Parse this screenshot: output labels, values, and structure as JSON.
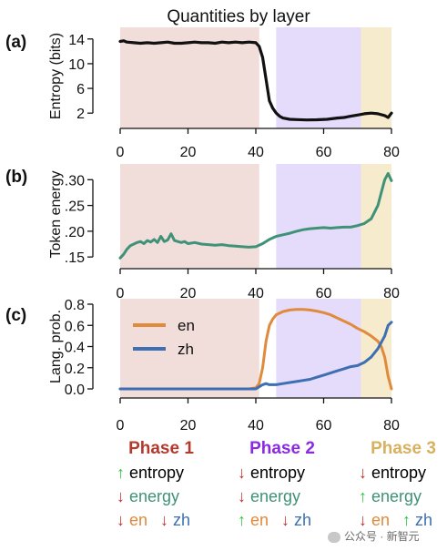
{
  "figure": {
    "title": "Quantities by layer",
    "colors": {
      "phase1": "#f1dedb",
      "phase2": "#e4dcfa",
      "phase3": "#f6ebcd",
      "line_black": "#111111",
      "energy_green": "#3f9278",
      "en_orange": "#e08a3c",
      "zh_blue": "#3d6fb2",
      "phase1_title": "#b53a2e",
      "phase2_title": "#8a2be2",
      "phase3_title": "#d9b05f"
    }
  },
  "chart_data": [
    {
      "type": "line",
      "panel_label": "(a)",
      "title": "Quantities by layer",
      "ylabel": "Entropy (bits)",
      "xlabel": "",
      "xlim": [
        0,
        80
      ],
      "ylim": [
        1,
        15
      ],
      "xticks": [
        "0",
        "20",
        "40",
        "60",
        "80"
      ],
      "yticks": [
        "14",
        "10",
        "6",
        "2"
      ],
      "ytick_values": [
        14,
        10,
        6,
        2
      ],
      "phase_shading": [
        {
          "from": 0,
          "to": 41
        },
        {
          "from": 46,
          "to": 71
        },
        {
          "from": 71,
          "to": 80
        }
      ],
      "series": [
        {
          "color": "#111111",
          "x": [
            0,
            1,
            2,
            4,
            6,
            8,
            10,
            12,
            14,
            16,
            18,
            20,
            22,
            24,
            26,
            28,
            30,
            32,
            34,
            36,
            38,
            40,
            41,
            42,
            43,
            44,
            45,
            46,
            47,
            48,
            50,
            52,
            55,
            58,
            61,
            64,
            66,
            68,
            70,
            72,
            74,
            76,
            78,
            79,
            80
          ],
          "y": [
            13.6,
            13.7,
            13.5,
            13.4,
            13.3,
            13.4,
            13.3,
            13.4,
            13.5,
            13.3,
            13.3,
            13.4,
            13.5,
            13.4,
            13.4,
            13.3,
            13.5,
            13.4,
            13.5,
            13.4,
            13.5,
            13.4,
            12.8,
            11.0,
            7.5,
            4.0,
            2.8,
            2.0,
            1.5,
            1.2,
            1.0,
            0.95,
            0.9,
            0.92,
            1.0,
            1.2,
            1.3,
            1.5,
            1.7,
            1.9,
            2.0,
            1.9,
            1.6,
            1.3,
            2.0
          ]
        }
      ]
    },
    {
      "type": "line",
      "panel_label": "(b)",
      "ylabel": "Token energy",
      "xlabel": "",
      "xlim": [
        0,
        80
      ],
      "ylim": [
        0.145,
        0.32
      ],
      "xticks": [
        "0",
        "20",
        "40",
        "60",
        "80"
      ],
      "yticks": [
        ".30",
        ".25",
        ".20",
        ".15"
      ],
      "ytick_values": [
        0.3,
        0.25,
        0.2,
        0.15
      ],
      "phase_shading": [
        {
          "from": 0,
          "to": 41
        },
        {
          "from": 46,
          "to": 71
        },
        {
          "from": 71,
          "to": 80
        }
      ],
      "series": [
        {
          "color": "#3f9278",
          "x": [
            0,
            1,
            2,
            3,
            4,
            5,
            6,
            7,
            8,
            9,
            10,
            11,
            12,
            13,
            14,
            15,
            16,
            17,
            18,
            19,
            20,
            22,
            24,
            26,
            28,
            30,
            32,
            34,
            36,
            38,
            40,
            42,
            44,
            46,
            48,
            50,
            52,
            54,
            56,
            58,
            60,
            62,
            64,
            66,
            68,
            70,
            72,
            74,
            76,
            77,
            78,
            79,
            80
          ],
          "y": [
            0.148,
            0.155,
            0.165,
            0.172,
            0.175,
            0.178,
            0.18,
            0.176,
            0.182,
            0.179,
            0.184,
            0.178,
            0.19,
            0.18,
            0.183,
            0.195,
            0.182,
            0.18,
            0.178,
            0.18,
            0.176,
            0.178,
            0.175,
            0.174,
            0.173,
            0.174,
            0.172,
            0.171,
            0.17,
            0.169,
            0.17,
            0.176,
            0.184,
            0.19,
            0.193,
            0.196,
            0.2,
            0.203,
            0.205,
            0.206,
            0.207,
            0.206,
            0.207,
            0.208,
            0.208,
            0.211,
            0.215,
            0.224,
            0.25,
            0.275,
            0.3,
            0.312,
            0.298
          ]
        }
      ]
    },
    {
      "type": "line",
      "panel_label": "(c)",
      "ylabel": "Lang. prob.",
      "xlabel": "",
      "xlim": [
        0,
        80
      ],
      "ylim": [
        0,
        0.8
      ],
      "xticks": [
        "0",
        "20",
        "40",
        "60",
        "80"
      ],
      "yticks": [
        "0.8",
        "0.6",
        "0.4",
        "0.2",
        "0.0"
      ],
      "ytick_values": [
        0.8,
        0.6,
        0.4,
        0.2,
        0.0
      ],
      "legend": "top-left",
      "phase_shading": [
        {
          "from": 0,
          "to": 41
        },
        {
          "from": 46,
          "to": 71
        },
        {
          "from": 71,
          "to": 80
        }
      ],
      "series": [
        {
          "name": "en",
          "color": "#e08a3c",
          "x": [
            0,
            10,
            20,
            30,
            38,
            40,
            41,
            42,
            43,
            44,
            45,
            46,
            48,
            50,
            52,
            54,
            56,
            58,
            60,
            62,
            64,
            66,
            68,
            70,
            72,
            74,
            76,
            77,
            78,
            79,
            80
          ],
          "y": [
            0.0,
            0.0,
            0.0,
            0.0,
            0.0,
            0.01,
            0.05,
            0.2,
            0.45,
            0.6,
            0.66,
            0.7,
            0.73,
            0.745,
            0.75,
            0.75,
            0.745,
            0.735,
            0.72,
            0.7,
            0.67,
            0.64,
            0.61,
            0.57,
            0.54,
            0.5,
            0.45,
            0.4,
            0.3,
            0.12,
            0.0
          ]
        },
        {
          "name": "zh",
          "color": "#3d6fb2",
          "x": [
            0,
            10,
            20,
            30,
            40,
            41,
            42,
            43,
            44,
            46,
            48,
            50,
            52,
            54,
            56,
            58,
            60,
            62,
            64,
            66,
            68,
            70,
            72,
            74,
            76,
            78,
            79,
            80
          ],
          "y": [
            0.0,
            0.0,
            0.0,
            0.0,
            0.0,
            0.02,
            0.04,
            0.05,
            0.04,
            0.04,
            0.05,
            0.06,
            0.07,
            0.08,
            0.09,
            0.11,
            0.13,
            0.15,
            0.17,
            0.19,
            0.21,
            0.22,
            0.25,
            0.3,
            0.38,
            0.5,
            0.6,
            0.63
          ]
        }
      ]
    }
  ],
  "phases": [
    {
      "title": "Phase 1",
      "title_color": "#b53a2e",
      "rows": [
        [
          {
            "arrow": "↑",
            "arrow_color": "#2bc43a",
            "text": "entropy",
            "text_color": "#000000"
          }
        ],
        [
          {
            "arrow": "↓",
            "arrow_color": "#c62d2d",
            "text": "energy",
            "text_color": "#3f9278"
          }
        ],
        [
          {
            "arrow": "↓",
            "arrow_color": "#c62d2d",
            "text": "en",
            "text_color": "#e08a3c"
          },
          {
            "arrow": "↓",
            "arrow_color": "#c62d2d",
            "text": "zh",
            "text_color": "#3d6fb2"
          }
        ]
      ]
    },
    {
      "title": "Phase 2",
      "title_color": "#8a2be2",
      "rows": [
        [
          {
            "arrow": "↓",
            "arrow_color": "#c62d2d",
            "text": "entropy",
            "text_color": "#000000"
          }
        ],
        [
          {
            "arrow": "↓",
            "arrow_color": "#c62d2d",
            "text": "energy",
            "text_color": "#3f9278"
          }
        ],
        [
          {
            "arrow": "↑",
            "arrow_color": "#2bc43a",
            "text": "en",
            "text_color": "#e08a3c"
          },
          {
            "arrow": "↓",
            "arrow_color": "#c62d2d",
            "text": "zh",
            "text_color": "#3d6fb2"
          }
        ]
      ]
    },
    {
      "title": "Phase 3",
      "title_color": "#d9b05f",
      "rows": [
        [
          {
            "arrow": "↓",
            "arrow_color": "#c62d2d",
            "text": "entropy",
            "text_color": "#000000"
          }
        ],
        [
          {
            "arrow": "↑",
            "arrow_color": "#2bc43a",
            "text": "energy",
            "text_color": "#3f9278"
          }
        ],
        [
          {
            "arrow": "↓",
            "arrow_color": "#c62d2d",
            "text": "en",
            "text_color": "#e08a3c"
          },
          {
            "arrow": "↑",
            "arrow_color": "#2bc43a",
            "text": "zh",
            "text_color": "#3d6fb2"
          }
        ]
      ]
    }
  ],
  "watermark": {
    "text": "公众号 · 新智元",
    "icon": "wechat-icon"
  }
}
